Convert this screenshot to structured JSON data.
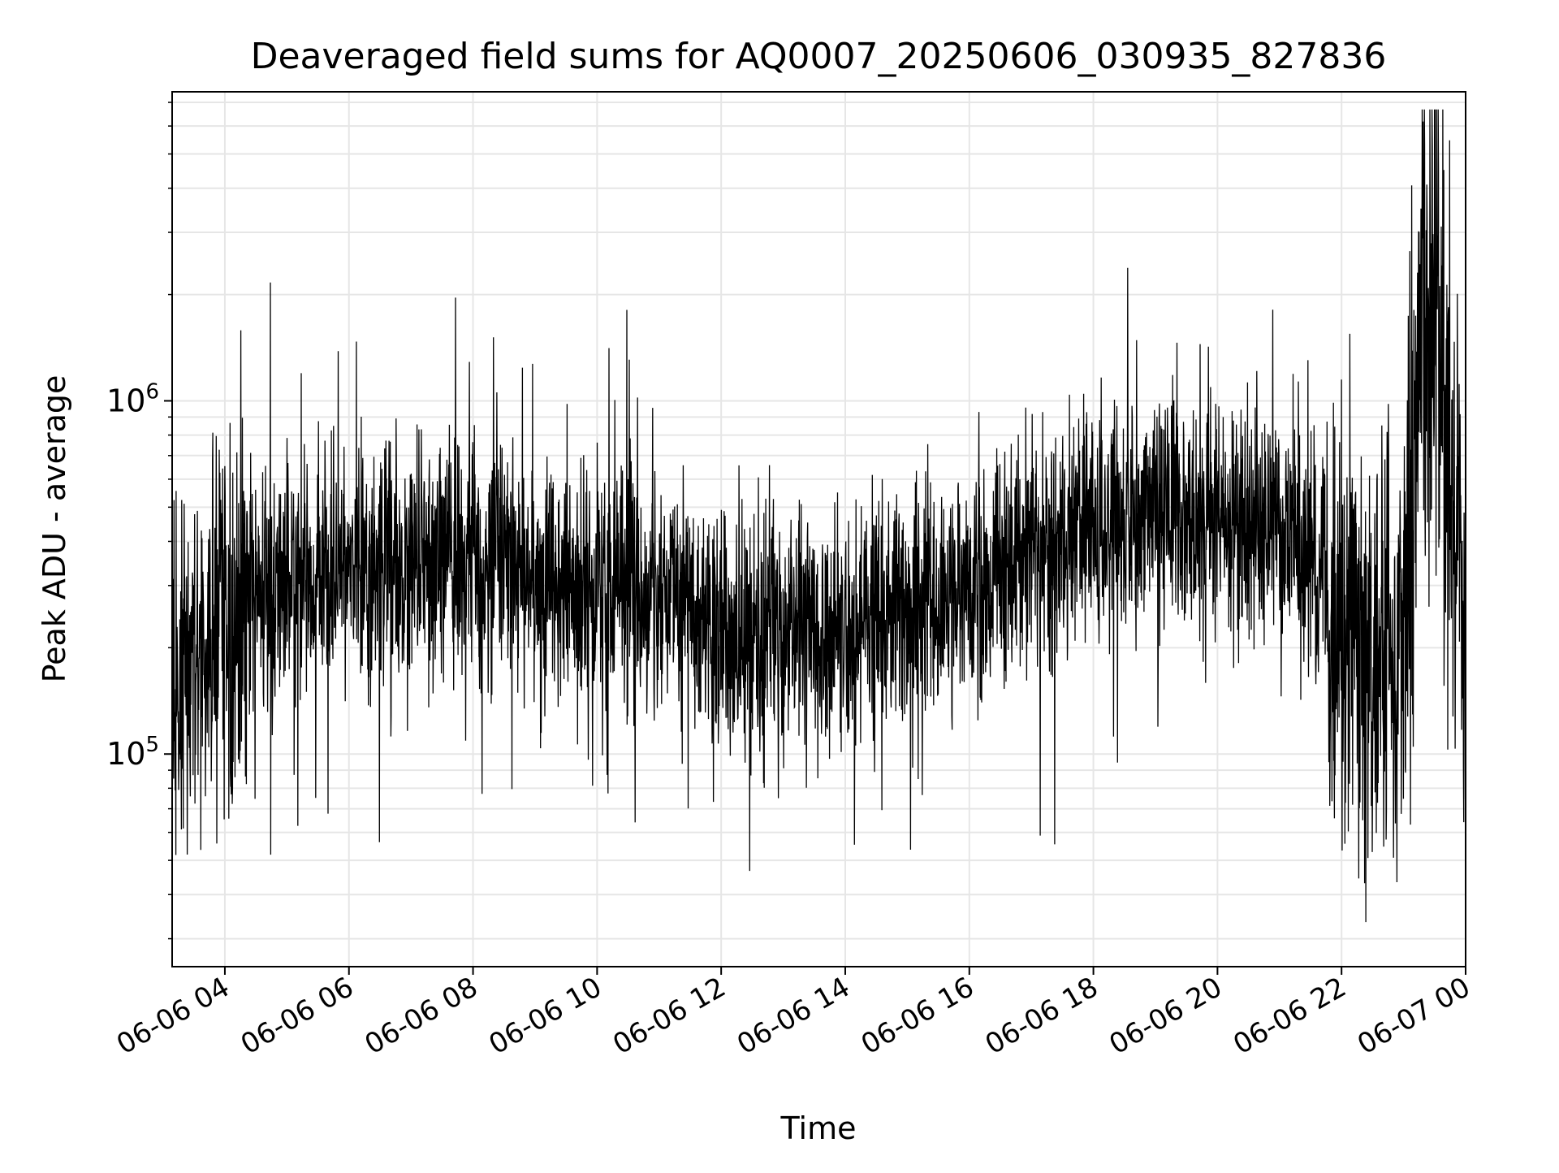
{
  "chart_data": {
    "type": "line",
    "title": "Deaveraged field sums for AQ0007_20250606_030935_827836",
    "xlabel": "Time",
    "ylabel": "Peak ADU - average",
    "y_scale": "log",
    "ylim": [
      25000,
      7500000
    ],
    "xlim": [
      "06-06 03:09",
      "06-07 00:00"
    ],
    "grid": true,
    "legend": "none",
    "colors": {
      "line": "#000000",
      "grid": "#e6e6e6",
      "axes": "#000000",
      "background": "#ffffff"
    },
    "x_ticks": [
      {
        "t": "06-06 04:00",
        "label": "06-06 04"
      },
      {
        "t": "06-06 06:00",
        "label": "06-06 06"
      },
      {
        "t": "06-06 08:00",
        "label": "06-06 08"
      },
      {
        "t": "06-06 10:00",
        "label": "06-06 10"
      },
      {
        "t": "06-06 12:00",
        "label": "06-06 12"
      },
      {
        "t": "06-06 14:00",
        "label": "06-06 14"
      },
      {
        "t": "06-06 16:00",
        "label": "06-06 16"
      },
      {
        "t": "06-06 18:00",
        "label": "06-06 18"
      },
      {
        "t": "06-06 20:00",
        "label": "06-06 20"
      },
      {
        "t": "06-06 22:00",
        "label": "06-06 22"
      },
      {
        "t": "06-07 00:00",
        "label": "06-07 00"
      }
    ],
    "y_ticks": [
      {
        "value": 100000,
        "base": "10",
        "exp": "5"
      },
      {
        "value": 1000000,
        "base": "10",
        "exp": "6"
      }
    ],
    "series": [
      {
        "x": [
          "06-06 03:09",
          "06-06 03:30",
          "06-06 04:00",
          "06-06 04:30",
          "06-06 05:00",
          "06-06 05:30",
          "06-06 06:00",
          "06-06 06:30",
          "06-06 07:00",
          "06-06 07:30",
          "06-06 08:00",
          "06-06 08:30",
          "06-06 09:00",
          "06-06 09:30",
          "06-06 10:00",
          "06-06 10:30",
          "06-06 11:00",
          "06-06 11:30",
          "06-06 12:00",
          "06-06 12:30",
          "06-06 13:00",
          "06-06 13:30",
          "06-06 14:00",
          "06-06 14:30",
          "06-06 15:00",
          "06-06 15:30",
          "06-06 16:00",
          "06-06 16:30",
          "06-06 17:00",
          "06-06 17:30",
          "06-06 18:00",
          "06-06 18:30",
          "06-06 19:00",
          "06-06 19:30",
          "06-06 20:00",
          "06-06 20:30",
          "06-06 21:00",
          "06-06 21:30",
          "06-06 22:00",
          "06-06 22:30",
          "06-06 23:00",
          "06-06 23:15",
          "06-06 23:30",
          "06-06 23:45",
          "06-07 00:00"
        ],
        "y": [
          150000,
          160000,
          230000,
          290000,
          300000,
          320000,
          330000,
          330000,
          330000,
          340000,
          350000,
          340000,
          320000,
          300000,
          300000,
          290000,
          290000,
          280000,
          220000,
          210000,
          220000,
          220000,
          220000,
          230000,
          250000,
          270000,
          310000,
          350000,
          380000,
          420000,
          450000,
          460000,
          470000,
          470000,
          470000,
          460000,
          440000,
          380000,
          240000,
          170000,
          260000,
          1500000,
          2200000,
          700000,
          300000
        ]
      }
    ]
  }
}
